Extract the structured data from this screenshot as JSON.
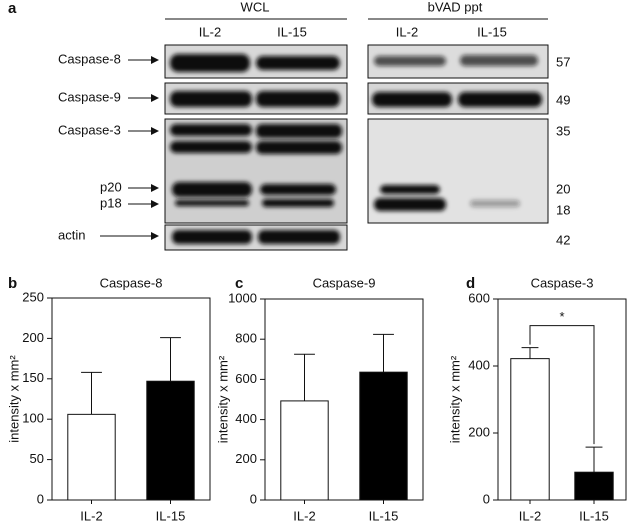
{
  "blot": {
    "panel": "a",
    "groups": [
      "WCL",
      "bVAD ppt"
    ],
    "lanes": [
      "IL-2",
      "IL-15",
      "IL-2",
      "IL-15"
    ],
    "proteins": [
      "Caspase-8",
      "Caspase-9",
      "Caspase-3",
      "p20",
      "p18",
      "actin"
    ],
    "mw": [
      "57",
      "49",
      "35",
      "20",
      "18",
      "42"
    ]
  },
  "chart_data": [
    {
      "type": "bar",
      "panel": "b",
      "title": "Caspase-8",
      "y_label": "intensity x mm²",
      "categories": [
        "IL-2",
        "IL-15"
      ],
      "values": [
        106,
        147
      ],
      "errors": [
        52,
        54
      ],
      "colors": [
        "#ffffff",
        "#000000"
      ],
      "ylim": [
        0,
        250
      ],
      "yticks": [
        0,
        50,
        100,
        150,
        200,
        250
      ]
    },
    {
      "type": "bar",
      "panel": "c",
      "title": "Caspase-9",
      "y_label": "intensity x mm²",
      "categories": [
        "IL-2",
        "IL-15"
      ],
      "values": [
        493,
        636
      ],
      "errors": [
        232,
        188
      ],
      "colors": [
        "#ffffff",
        "#000000"
      ],
      "ylim": [
        0,
        1000
      ],
      "yticks": [
        0,
        200,
        400,
        600,
        800,
        1000
      ]
    },
    {
      "type": "bar",
      "panel": "d",
      "title": "Caspase-3",
      "y_label": "intensity x mm²",
      "categories": [
        "IL-2",
        "IL-15"
      ],
      "values": [
        422,
        83
      ],
      "errors": [
        33,
        75
      ],
      "colors": [
        "#ffffff",
        "#000000"
      ],
      "ylim": [
        0,
        600
      ],
      "yticks": [
        0,
        200,
        400,
        600
      ],
      "significance": "*"
    }
  ]
}
